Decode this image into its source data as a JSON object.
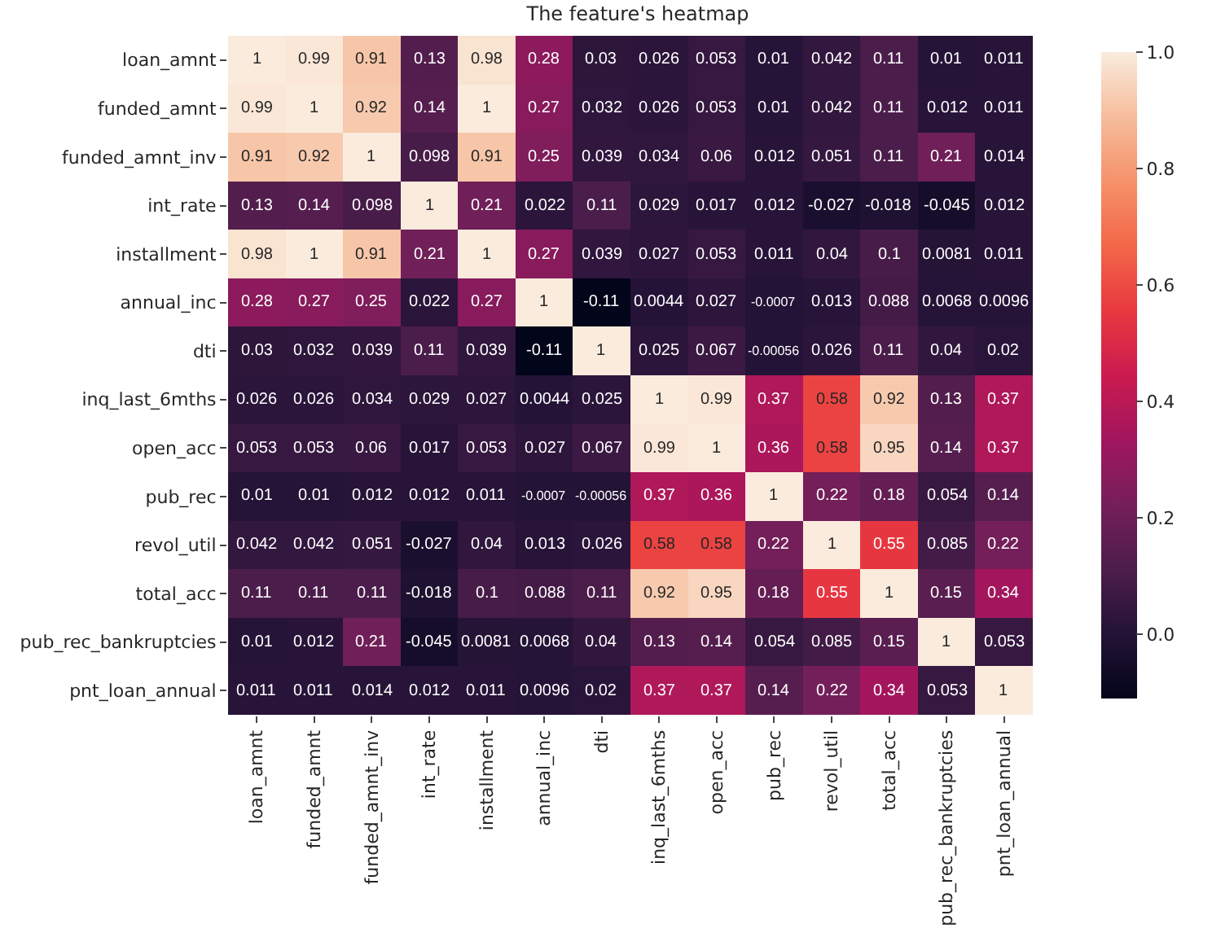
{
  "chart_data": {
    "type": "heatmap",
    "title": "The feature's heatmap",
    "categories": [
      "loan_amnt",
      "funded_amnt",
      "funded_amnt_inv",
      "int_rate",
      "installment",
      "annual_inc",
      "dti",
      "inq_last_6mths",
      "open_acc",
      "pub_rec",
      "revol_util",
      "total_acc",
      "pub_rec_bankruptcies",
      "pnt_loan_annual"
    ],
    "y_categories": [
      "loan_amnt",
      "funded_amnt",
      "funded_amnt_inv",
      "int_rate",
      "installment",
      "annual_inc",
      "dti",
      "inq_last_6mths",
      "open_acc",
      "pub_rec",
      "revol_util",
      "total_acc",
      "pub_rec_bankruptcies",
      "pnt_loan_annual"
    ],
    "cells": [
      [
        1,
        0.99,
        0.91,
        0.13,
        0.98,
        0.28,
        0.03,
        0.026,
        0.053,
        0.01,
        0.042,
        0.11,
        0.01,
        0.011
      ],
      [
        0.99,
        1,
        0.92,
        0.14,
        1,
        0.27,
        0.032,
        0.026,
        0.053,
        0.01,
        0.042,
        0.11,
        0.012,
        0.011
      ],
      [
        0.91,
        0.92,
        1,
        0.098,
        0.91,
        0.25,
        0.039,
        0.034,
        0.06,
        0.012,
        0.051,
        0.11,
        0.21,
        0.014
      ],
      [
        0.13,
        0.14,
        0.098,
        1,
        0.21,
        0.022,
        0.11,
        0.029,
        0.017,
        0.012,
        -0.027,
        -0.018,
        -0.045,
        0.012
      ],
      [
        0.98,
        1,
        0.91,
        0.21,
        1,
        0.27,
        0.039,
        0.027,
        0.053,
        0.011,
        0.04,
        0.1,
        0.0081,
        0.011
      ],
      [
        0.28,
        0.27,
        0.25,
        0.022,
        0.27,
        1,
        -0.11,
        0.0044,
        0.027,
        -0.0007,
        0.013,
        0.088,
        0.0068,
        0.0096
      ],
      [
        0.03,
        0.032,
        0.039,
        0.11,
        0.039,
        -0.11,
        1,
        0.025,
        0.067,
        -0.00056,
        0.026,
        0.11,
        0.04,
        0.02
      ],
      [
        0.026,
        0.026,
        0.034,
        0.029,
        0.027,
        0.0044,
        0.025,
        1,
        0.99,
        0.37,
        0.58,
        0.92,
        0.13,
        0.37
      ],
      [
        0.053,
        0.053,
        0.06,
        0.017,
        0.053,
        0.027,
        0.067,
        0.99,
        1,
        0.36,
        0.58,
        0.95,
        0.14,
        0.37
      ],
      [
        0.01,
        0.01,
        0.012,
        0.012,
        0.011,
        -0.0007,
        -0.00056,
        0.37,
        0.36,
        1,
        0.22,
        0.18,
        0.054,
        0.14
      ],
      [
        0.042,
        0.042,
        0.051,
        -0.027,
        0.04,
        0.013,
        0.026,
        0.58,
        0.58,
        0.22,
        1,
        0.55,
        0.085,
        0.22
      ],
      [
        0.11,
        0.11,
        0.11,
        -0.018,
        0.1,
        0.088,
        0.11,
        0.92,
        0.95,
        0.18,
        0.55,
        1,
        0.15,
        0.34
      ],
      [
        0.01,
        0.012,
        0.21,
        -0.045,
        0.0081,
        0.0068,
        0.04,
        0.13,
        0.14,
        0.054,
        0.085,
        0.15,
        1,
        0.053
      ],
      [
        0.011,
        0.011,
        0.014,
        0.012,
        0.011,
        0.0096,
        0.02,
        0.37,
        0.37,
        0.14,
        0.22,
        0.34,
        0.053,
        1
      ]
    ],
    "clim": [
      -0.11,
      1
    ],
    "cticks": [
      {
        "value": 0,
        "label": "0.0"
      },
      {
        "value": 0.2,
        "label": "0.2"
      },
      {
        "value": 0.4,
        "label": "0.4"
      },
      {
        "value": 0.6,
        "label": "0.6"
      },
      {
        "value": 0.8,
        "label": "0.8"
      },
      {
        "value": 1,
        "label": "1.0"
      }
    ],
    "data_labels": true
  }
}
